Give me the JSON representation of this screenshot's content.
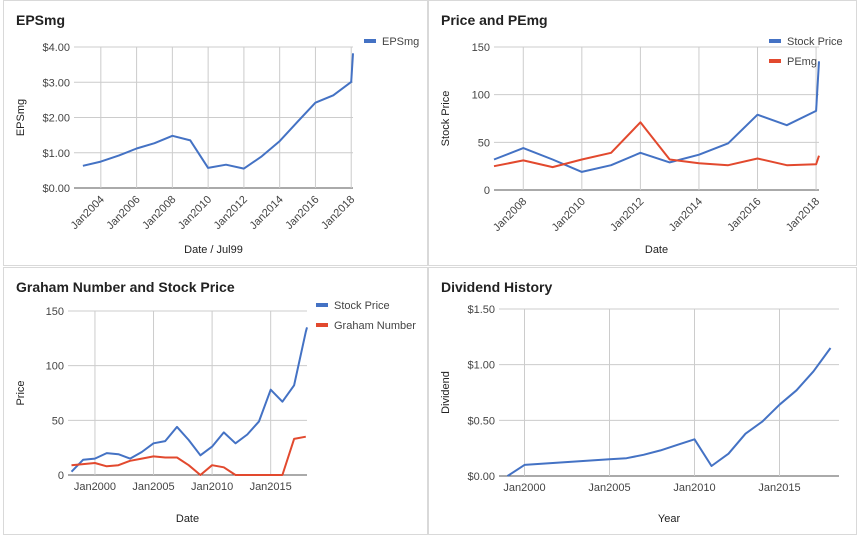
{
  "chart_data": [
    {
      "type": "line",
      "title": "EPSmg",
      "xlabel": "Date / Jul99",
      "ylabel": "EPSmg",
      "xlim": [
        2002.5,
        2018.1
      ],
      "ylim": [
        0,
        4
      ],
      "yticks": [
        {
          "value": 0,
          "label": "$0.00"
        },
        {
          "value": 1,
          "label": "$1.00"
        },
        {
          "value": 2,
          "label": "$2.00"
        },
        {
          "value": 3,
          "label": "$3.00"
        },
        {
          "value": 4,
          "label": "$4.00"
        }
      ],
      "xticks": [
        {
          "value": 2004,
          "label": "Jan2004"
        },
        {
          "value": 2006,
          "label": "Jan2006"
        },
        {
          "value": 2008,
          "label": "Jan2008"
        },
        {
          "value": 2010,
          "label": "Jan2010"
        },
        {
          "value": 2012,
          "label": "Jan2012"
        },
        {
          "value": 2014,
          "label": "Jan2014"
        },
        {
          "value": 2016,
          "label": "Jan2016"
        },
        {
          "value": 2018,
          "label": "Jan2018"
        }
      ],
      "xtick_rotate": true,
      "legend_position": "right",
      "series": [
        {
          "name": "EPSmg",
          "color": "#4472C4",
          "x": [
            2003,
            2004,
            2005,
            2006,
            2007,
            2008,
            2009,
            2010,
            2011,
            2012,
            2013,
            2014,
            2015,
            2016,
            2017,
            2018,
            2018.1
          ],
          "y": [
            0.63,
            0.75,
            0.92,
            1.12,
            1.27,
            1.48,
            1.35,
            0.57,
            0.66,
            0.55,
            0.9,
            1.33,
            1.88,
            2.42,
            2.63,
            3.01,
            3.82
          ]
        }
      ]
    },
    {
      "type": "line",
      "title": "Price and PEmg",
      "xlabel": "Date",
      "ylabel": "Stock Price",
      "xlim": [
        2007,
        2018.1
      ],
      "ylim": [
        0,
        150
      ],
      "yticks": [
        {
          "value": 0,
          "label": "0"
        },
        {
          "value": 50,
          "label": "50"
        },
        {
          "value": 100,
          "label": "100"
        },
        {
          "value": 150,
          "label": "150"
        }
      ],
      "xticks": [
        {
          "value": 2008,
          "label": "Jan2008"
        },
        {
          "value": 2010,
          "label": "Jan2010"
        },
        {
          "value": 2012,
          "label": "Jan2012"
        },
        {
          "value": 2014,
          "label": "Jan2014"
        },
        {
          "value": 2016,
          "label": "Jan2016"
        },
        {
          "value": 2018,
          "label": "Jan2018"
        }
      ],
      "xtick_rotate": true,
      "legend_position": "right",
      "series": [
        {
          "name": "Stock Price",
          "color": "#4472C4",
          "x": [
            2007,
            2008,
            2009,
            2010,
            2011,
            2012,
            2013,
            2014,
            2015,
            2016,
            2017,
            2018,
            2018.1
          ],
          "y": [
            32,
            44,
            32,
            19,
            26,
            39,
            29,
            37,
            49,
            79,
            68,
            83,
            135
          ]
        },
        {
          "name": "PEmg",
          "color": "#E2492E",
          "x": [
            2007,
            2008,
            2009,
            2010,
            2011,
            2012,
            2013,
            2014,
            2015,
            2016,
            2017,
            2018,
            2018.1
          ],
          "y": [
            25,
            31,
            24,
            32,
            39,
            71,
            32,
            28,
            26,
            33,
            26,
            27,
            36
          ]
        }
      ]
    },
    {
      "type": "line",
      "title": "Graham Number and Stock Price",
      "xlabel": "Date",
      "ylabel": "Price",
      "xlim": [
        1997.7,
        2018.1
      ],
      "ylim": [
        0,
        150
      ],
      "yticks": [
        {
          "value": 0,
          "label": "0"
        },
        {
          "value": 50,
          "label": "50"
        },
        {
          "value": 100,
          "label": "100"
        },
        {
          "value": 150,
          "label": "150"
        }
      ],
      "xticks": [
        {
          "value": 2000,
          "label": "Jan2000"
        },
        {
          "value": 2005,
          "label": "Jan2005"
        },
        {
          "value": 2010,
          "label": "Jan2010"
        },
        {
          "value": 2015,
          "label": "Jan2015"
        }
      ],
      "xtick_rotate": false,
      "legend_position": "right",
      "series": [
        {
          "name": "Stock Price",
          "color": "#4472C4",
          "x": [
            1998,
            1999,
            2000,
            2001,
            2002,
            2003,
            2004,
            2005,
            2006,
            2007,
            2008,
            2009,
            2010,
            2011,
            2012,
            2013,
            2014,
            2015,
            2016,
            2017,
            2018,
            2018.1
          ],
          "y": [
            3,
            14,
            15,
            20,
            19,
            15,
            21,
            29,
            31,
            44,
            32,
            18,
            26,
            39,
            29,
            37,
            49,
            78,
            67,
            82,
            131,
            135
          ]
        },
        {
          "name": "Graham Number",
          "color": "#E2492E",
          "x": [
            1998,
            1999,
            2000,
            2001,
            2002,
            2003,
            2004,
            2005,
            2006,
            2007,
            2008,
            2009,
            2010,
            2011,
            2012,
            2013,
            2014,
            2015,
            2016,
            2017,
            2018
          ],
          "y": [
            9,
            10,
            11,
            8,
            9,
            13,
            15,
            17,
            16,
            16,
            9,
            0,
            9,
            7,
            0,
            0,
            0,
            0,
            0,
            33,
            35
          ]
        }
      ]
    },
    {
      "type": "line",
      "title": "Dividend History",
      "xlabel": "Year",
      "ylabel": "Dividend",
      "xlim": [
        1998.5,
        2018.5
      ],
      "ylim": [
        0,
        1.5
      ],
      "yticks": [
        {
          "value": 0,
          "label": "$0.00"
        },
        {
          "value": 0.5,
          "label": "$0.50"
        },
        {
          "value": 1,
          "label": "$1.00"
        },
        {
          "value": 1.5,
          "label": "$1.50"
        }
      ],
      "xticks": [
        {
          "value": 2000,
          "label": "Jan2000"
        },
        {
          "value": 2005,
          "label": "Jan2005"
        },
        {
          "value": 2010,
          "label": "Jan2010"
        },
        {
          "value": 2015,
          "label": "Jan2015"
        }
      ],
      "xtick_rotate": false,
      "legend_position": "none",
      "series": [
        {
          "name": "",
          "color": "#4472C4",
          "x": [
            1999,
            2000,
            2001,
            2002,
            2003,
            2004,
            2005,
            2006,
            2007,
            2008,
            2009,
            2010,
            2011,
            2012,
            2013,
            2014,
            2015,
            2016,
            2017,
            2018
          ],
          "y": [
            0.0,
            0.1,
            0.11,
            0.12,
            0.13,
            0.14,
            0.15,
            0.16,
            0.19,
            0.23,
            0.28,
            0.33,
            0.09,
            0.2,
            0.38,
            0.49,
            0.64,
            0.77,
            0.94,
            1.15
          ]
        }
      ]
    }
  ]
}
